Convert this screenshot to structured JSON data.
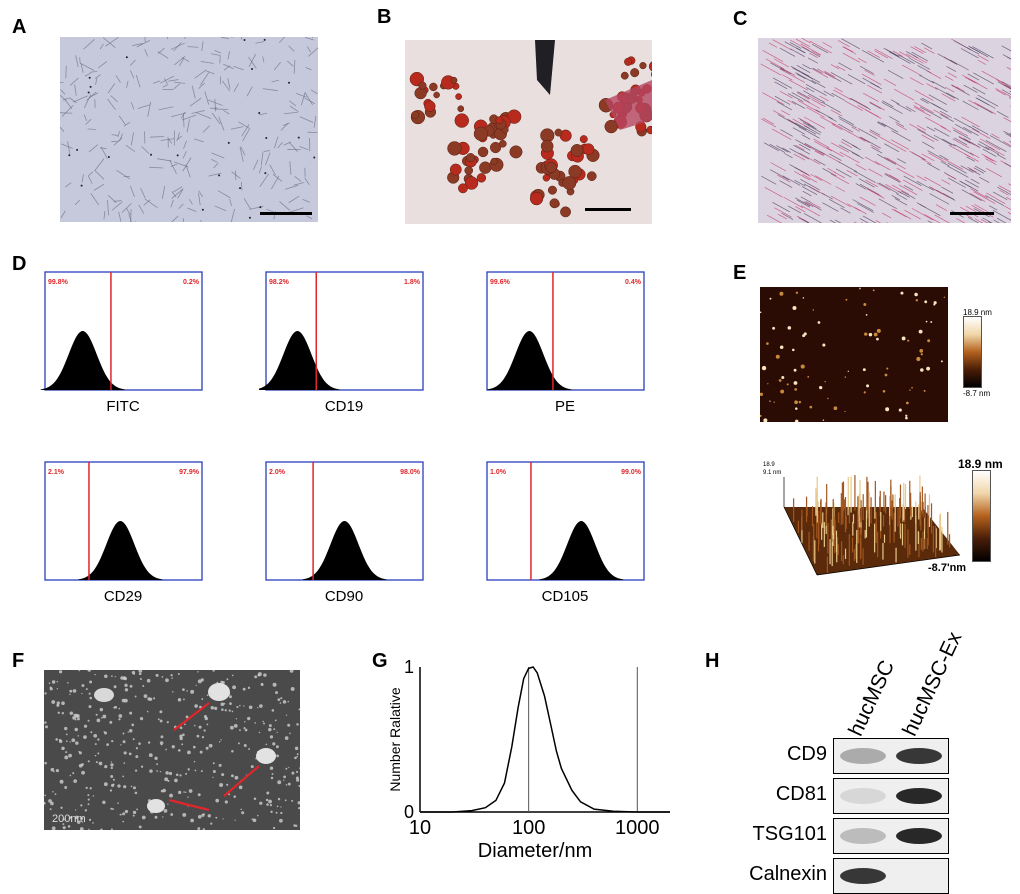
{
  "panels": {
    "a": "A",
    "b": "B",
    "c": "C",
    "d": "D",
    "e": "E",
    "f": "F",
    "g": "G",
    "h": "H"
  },
  "flow": {
    "histograms": [
      {
        "marker": "FITC",
        "left_pct": "99.8%",
        "right_pct": "0.2%",
        "peak_position": 0.24,
        "gate_position": 0.42
      },
      {
        "marker": "CD19",
        "left_pct": "98.2%",
        "right_pct": "1.8%",
        "peak_position": 0.2,
        "gate_position": 0.32
      },
      {
        "marker": "PE",
        "left_pct": "99.6%",
        "right_pct": "0.4%",
        "peak_position": 0.27,
        "gate_position": 0.42
      },
      {
        "marker": "CD29",
        "left_pct": "2.1%",
        "right_pct": "97.9%",
        "peak_position": 0.48,
        "gate_position": 0.28
      },
      {
        "marker": "CD90",
        "left_pct": "2.0%",
        "right_pct": "98.0%",
        "peak_position": 0.5,
        "gate_position": 0.3
      },
      {
        "marker": "CD105",
        "left_pct": "1.0%",
        "right_pct": "99.0%",
        "peak_position": 0.6,
        "gate_position": 0.28
      }
    ]
  },
  "afm": {
    "top_max": "18.9 nm",
    "top_min": "-8.7 nm",
    "bottom_max": "18.9 nm",
    "bottom_min": "-8.7'nm",
    "axis_top": "18.9",
    "axis_second": "9.1 nm"
  },
  "tem": {
    "scale_label": "200nm"
  },
  "chart_data": {
    "type": "line",
    "xlabel": "Diameter/nm",
    "ylabel": "Number Ralative",
    "xscale": "log",
    "xlim": [
      10,
      2000
    ],
    "ylim": [
      0,
      1
    ],
    "xticks": [
      "10",
      "100",
      "1000"
    ],
    "yticks": [
      "0",
      "1"
    ],
    "vlines": [
      100,
      1000
    ],
    "x": [
      10,
      20,
      30,
      40,
      50,
      60,
      70,
      80,
      90,
      100,
      110,
      120,
      140,
      160,
      180,
      200,
      250,
      300,
      400,
      600,
      1000,
      2000
    ],
    "y": [
      0,
      0,
      0.01,
      0.03,
      0.08,
      0.2,
      0.45,
      0.72,
      0.92,
      0.99,
      1.0,
      0.96,
      0.8,
      0.6,
      0.42,
      0.3,
      0.15,
      0.07,
      0.02,
      0.005,
      0,
      0
    ]
  },
  "western": {
    "columns": [
      "hucMSC",
      "hucMSC-Ex"
    ],
    "rows": [
      {
        "label": "CD9",
        "bands": [
          0.45,
          0.95
        ]
      },
      {
        "label": "CD81",
        "bands": [
          0.15,
          1.0
        ]
      },
      {
        "label": "TSG101",
        "bands": [
          0.35,
          1.0
        ]
      },
      {
        "label": "Calnexin",
        "bands": [
          0.95,
          0.0
        ]
      }
    ]
  }
}
